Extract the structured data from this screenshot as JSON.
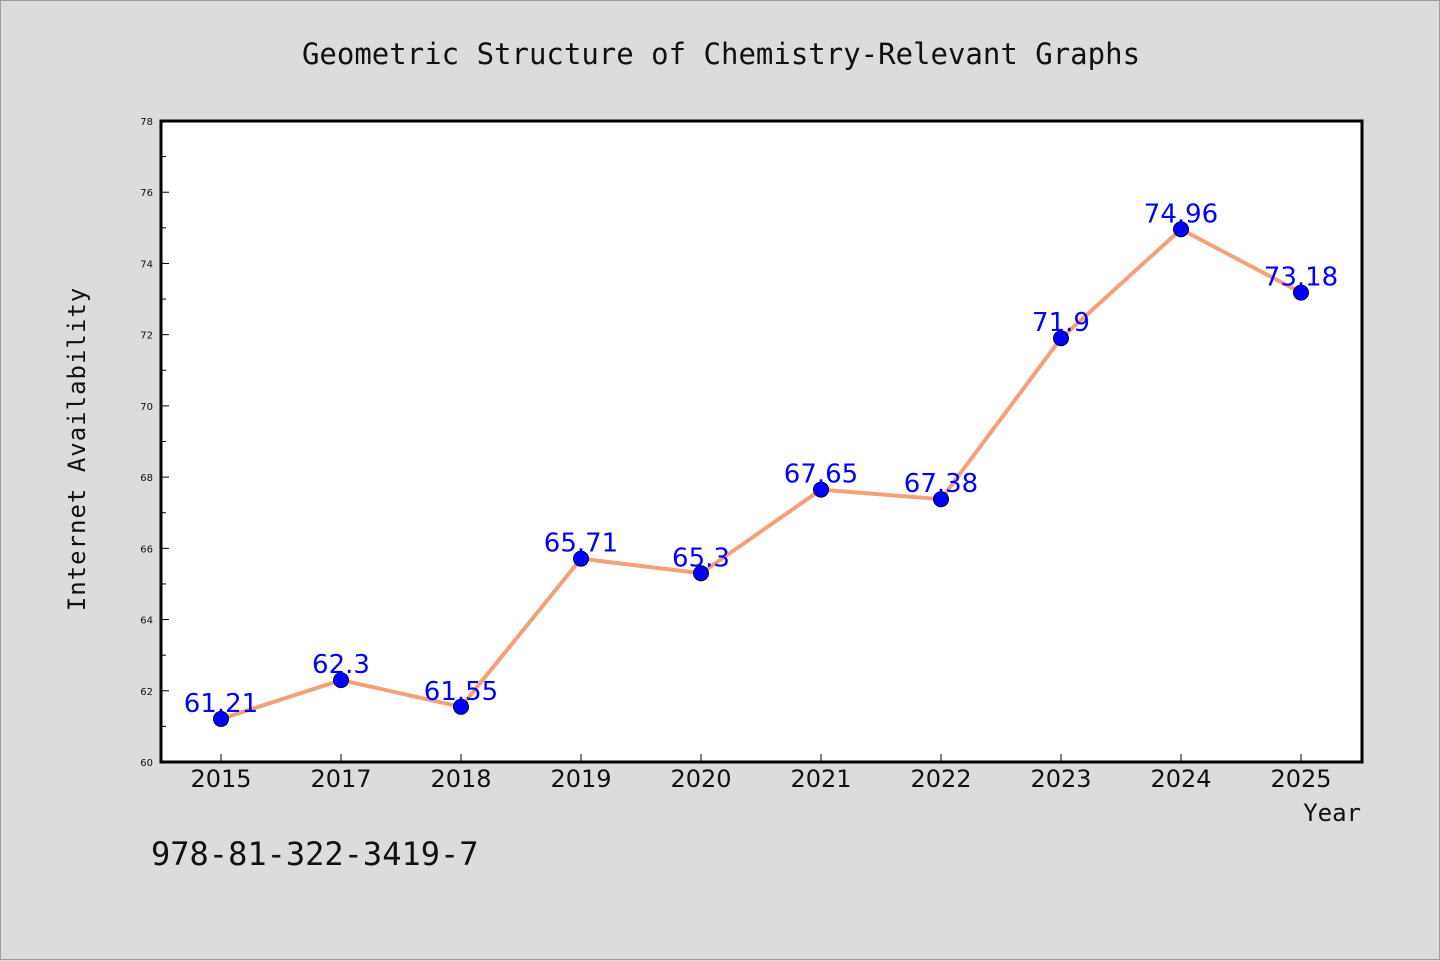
{
  "chart_data": {
    "type": "line",
    "title": "Geometric Structure of Chemistry-Relevant Graphs",
    "xlabel": "Year",
    "ylabel": "Internet Availability",
    "categories": [
      "2015",
      "2017",
      "2018",
      "2019",
      "2020",
      "2021",
      "2022",
      "2023",
      "2024",
      "2025"
    ],
    "series": [
      {
        "values": [
          61.21,
          62.3,
          61.55,
          65.71,
          65.3,
          67.65,
          67.38,
          71.9,
          74.96,
          73.18
        ],
        "data_labels": [
          "61.21",
          "62.3",
          "61.55",
          "65.71",
          "65.3",
          "67.65",
          "67.38",
          "71.9",
          "74.96",
          "73.18"
        ],
        "line_color": "#f4a07a",
        "marker_color": "#0000ff"
      }
    ],
    "ylim": [
      60,
      78
    ],
    "y_ticks": [
      "60",
      "62",
      "64",
      "66",
      "68",
      "70",
      "72",
      "74",
      "76",
      "78"
    ],
    "grid": false,
    "legend": "none"
  },
  "footnote": "978-81-322-3419-7",
  "colors": {
    "background": "#dcdcdc",
    "plot_background": "#ffffff",
    "line": "#f4a07a",
    "marker": "#0000ff",
    "data_label": "#0000ff"
  }
}
